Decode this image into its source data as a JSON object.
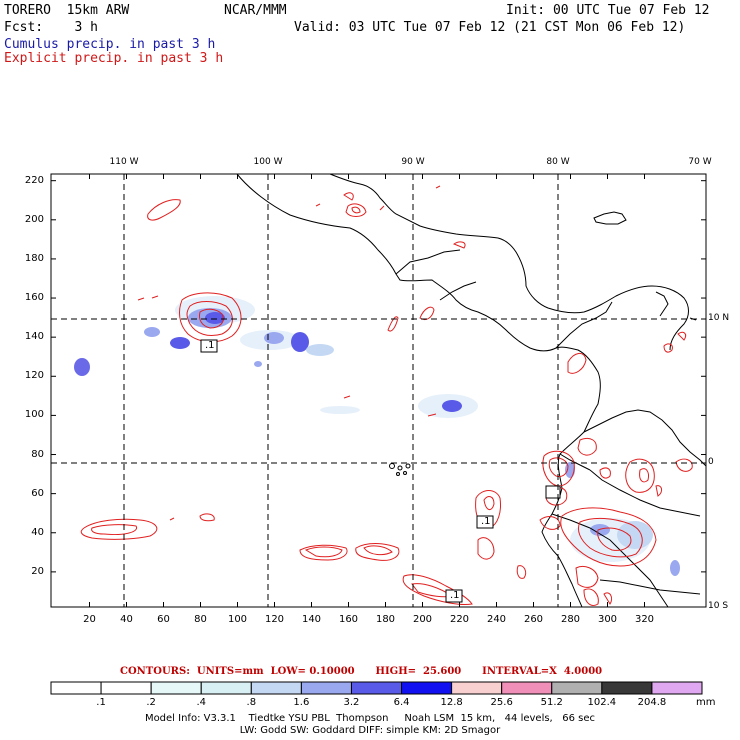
{
  "header": {
    "model": "TORERO  15km ARW",
    "center": "NCAR/MMM",
    "init": "Init: 00 UTC Tue 07 Feb 12",
    "fcst": "Fcst:    3 h",
    "valid": "Valid: 03 UTC Tue 07 Feb 12 (21 CST Mon 06 Feb 12)",
    "field1": "Cumulus precip. in past 3 h",
    "field2": "Explicit precip. in past 3 h"
  },
  "axes": {
    "x_ticks": [
      "20",
      "40",
      "60",
      "80",
      "100",
      "120",
      "140",
      "160",
      "180",
      "200",
      "220",
      "240",
      "260",
      "280",
      "300",
      "320"
    ],
    "y_ticks": [
      "220",
      "200",
      "180",
      "160",
      "140",
      "120",
      "100",
      "80",
      "60",
      "40",
      "20"
    ],
    "lon_labels": [
      "110 W",
      "100 W",
      "90 W",
      "80 W",
      "70 W"
    ],
    "lat_labels": [
      "10 N",
      "0",
      "10 S"
    ]
  },
  "contour_labels": [
    ".1",
    ".1",
    ".1"
  ],
  "contours_line": "CONTOURS:  UNITS=mm  LOW= 0.10000      HIGH=  25.600      INTERVAL=X  4.0000",
  "colorbar": {
    "labels": [
      ".1",
      ".2",
      ".4",
      ".8",
      "1.6",
      "3.2",
      "6.4",
      "12.8",
      "25.6",
      "51.2",
      "102.4",
      "204.8"
    ],
    "unit": "mm",
    "colors": [
      "#ffffff",
      "#ffffff",
      "#e6f8f8",
      "#d8f0f4",
      "#c4d8f4",
      "#9aa8f0",
      "#5a5ae8",
      "#1010f0",
      "#f8d0d0",
      "#f090b8",
      "#b0b0b0",
      "#383838",
      "#e0a8f0"
    ]
  },
  "footer": {
    "line1": "Model Info: V3.3.1    Tiedtke YSU PBL  Thompson     Noah LSM  15 km,   44 levels,   66 sec",
    "line2": "LW: Godd SW: Goddard DIFF: simple KM: 2D Smagor"
  },
  "colors": {
    "precip_explicit": "#e02020",
    "text_blue": "#1a1aa8",
    "text_red": "#d01818"
  }
}
